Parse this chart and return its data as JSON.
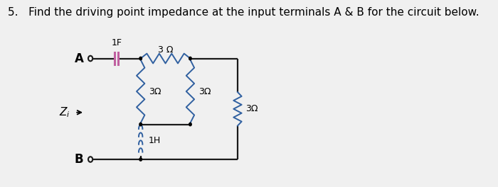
{
  "title": "5.   Find the driving point impedance at the input terminals A & B for the circuit below.",
  "title_fontsize": 11,
  "bg_color": "#f0f0f0",
  "line_color": "#000000",
  "resistor_color": "#3060a0",
  "cap_color": "#c060a0",
  "inductor_color": "#3060a0",
  "wire_color": "#1a1a1a",
  "label_1F": "1F",
  "label_3ohm_top": "3 Ω",
  "label_3ohm_v1": "3Ω",
  "label_3ohm_v2": "3Ω",
  "label_3ohm_v3": "3Ω",
  "label_1H": "1H"
}
